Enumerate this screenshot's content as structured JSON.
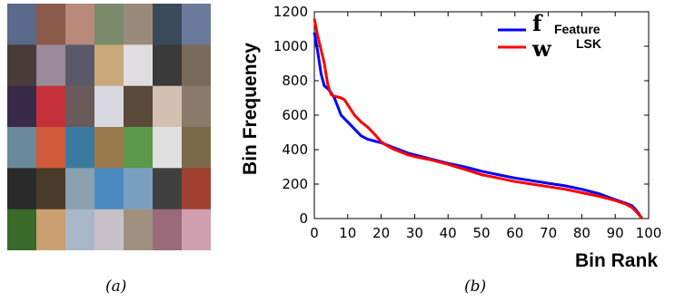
{
  "panel_a": {
    "caption": "(a)",
    "tile_colors": [
      [
        "#5a6a8a",
        "#8a5a4a",
        "#b98a7a",
        "#7a8a6a",
        "#9a8a7a",
        "#3a4a5a",
        "#6a7a9a"
      ],
      [
        "#4a3a3a",
        "#9a8a9a",
        "#5a5a6a",
        "#c9a97a",
        "#e0dde0",
        "#3a3a3a",
        "#7a6a5a"
      ],
      [
        "#3a2a4a",
        "#c4303a",
        "#6a5a5a",
        "#d8d8e0",
        "#5a4a3a",
        "#d4c0b0",
        "#8a7a6a"
      ],
      [
        "#6a8a9a",
        "#d05a3a",
        "#3a7aa0",
        "#9a7a4a",
        "#5a9a4a",
        "#e0e0e0",
        "#7a6a4a"
      ],
      [
        "#2a2a2a",
        "#4a3a2a",
        "#8aa0b0",
        "#4a8ac0",
        "#7aa0c0",
        "#404040",
        "#a04030"
      ],
      [
        "#3a6a2a",
        "#caa070",
        "#a8b8c8",
        "#c8c0c8",
        "#a09080",
        "#9a6a7a",
        "#d0a0b0"
      ]
    ]
  },
  "panel_b": {
    "caption": "(b)"
  },
  "chart_data": {
    "type": "line",
    "xlabel": "Bin Rank",
    "ylabel": "Bin Frequency",
    "xlim": [
      0,
      100
    ],
    "ylim": [
      0,
      1200
    ],
    "xticks": [
      0,
      10,
      20,
      30,
      40,
      50,
      60,
      70,
      80,
      90,
      100
    ],
    "yticks": [
      0,
      200,
      400,
      600,
      800,
      1000,
      1200
    ],
    "legend_position": "top-right",
    "series": [
      {
        "name": "Feature",
        "symbol": "f",
        "color": "#0000ff",
        "x": [
          0,
          1,
          2,
          3,
          4,
          5,
          6,
          7,
          8,
          9,
          10,
          12,
          14,
          16,
          18,
          20,
          22,
          24,
          26,
          28,
          30,
          35,
          40,
          45,
          50,
          55,
          60,
          65,
          70,
          75,
          80,
          85,
          90,
          93,
          95,
          96,
          97,
          98
        ],
        "values": [
          1080,
          970,
          840,
          770,
          755,
          730,
          700,
          650,
          600,
          580,
          560,
          520,
          480,
          460,
          450,
          440,
          425,
          410,
          395,
          380,
          370,
          345,
          320,
          300,
          275,
          255,
          235,
          220,
          205,
          190,
          170,
          145,
          110,
          90,
          75,
          55,
          30,
          0
        ]
      },
      {
        "name": "LSK",
        "symbol": "w",
        "color": "#ff0000",
        "x": [
          0,
          1,
          2,
          3,
          4,
          5,
          6,
          7,
          8,
          9,
          10,
          12,
          14,
          16,
          18,
          20,
          22,
          24,
          26,
          28,
          30,
          35,
          40,
          45,
          50,
          55,
          60,
          65,
          70,
          75,
          80,
          85,
          90,
          93,
          95,
          96,
          97,
          98
        ],
        "values": [
          1160,
          1060,
          980,
          900,
          780,
          720,
          710,
          705,
          700,
          690,
          660,
          600,
          560,
          530,
          490,
          445,
          420,
          400,
          385,
          370,
          360,
          340,
          315,
          285,
          255,
          235,
          215,
          200,
          185,
          170,
          150,
          130,
          105,
          85,
          65,
          45,
          25,
          0
        ]
      }
    ]
  }
}
